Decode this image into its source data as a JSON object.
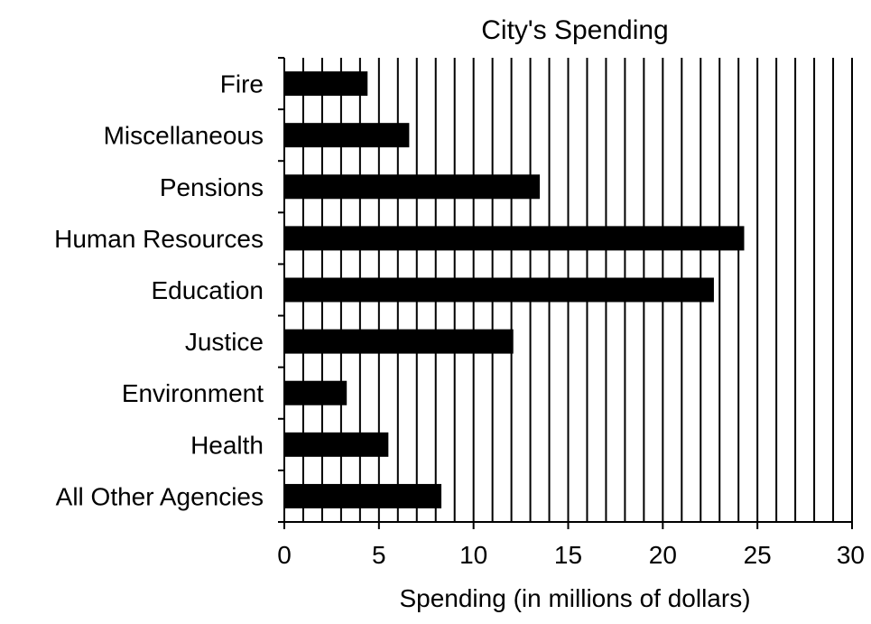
{
  "chart_data": {
    "type": "bar",
    "orientation": "horizontal",
    "title": "City's Spending",
    "xlabel": "Spending (in millions of dollars)",
    "ylabel": "",
    "xlim": [
      0,
      30
    ],
    "x_ticks": [
      "0",
      "5",
      "10",
      "15",
      "20",
      "25",
      "30"
    ],
    "grid": "vertical lines every 1 unit",
    "categories": [
      "Fire",
      "Miscellaneous",
      "Pensions",
      "Human Resources",
      "Education",
      "Justice",
      "Environment",
      "Health",
      "All Other Agencies"
    ],
    "values": [
      4.4,
      6.6,
      13.5,
      24.3,
      22.7,
      12.1,
      3.3,
      5.5,
      8.3
    ],
    "colors": {
      "bar": "#000000",
      "grid": "#000000",
      "background": "#ffffff"
    }
  }
}
